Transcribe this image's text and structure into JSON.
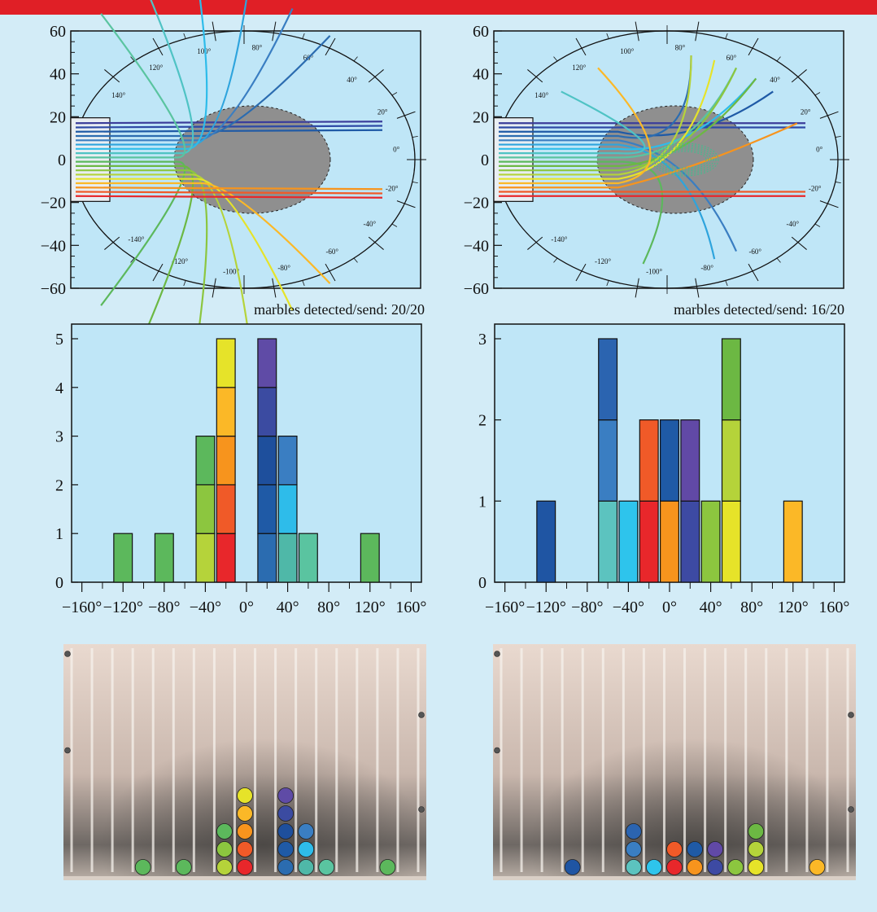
{
  "page": {
    "accent_color": "#e01f26",
    "background_color": "#d3ecf7",
    "plot_bg_color": "#bfe6f7"
  },
  "panels": [
    {
      "caption": "marbles detected/send: 20/20"
    },
    {
      "caption": "marbles detected/send: 16/20"
    }
  ],
  "trajectory_plot": {
    "y_ticks": [
      "60",
      "40",
      "20",
      "0",
      "−20",
      "−40",
      "−60"
    ],
    "angle_labels_upper": [
      "140°",
      "120°",
      "100°",
      "80°",
      "60°",
      "40°",
      "20°",
      "0°"
    ],
    "angle_labels_lower": [
      "-140°",
      "-120°",
      "-100°",
      "-80°",
      "-60°",
      "-40°",
      "-20°"
    ]
  },
  "chart_data": [
    {
      "type": "bar",
      "title": "marbles detected/send: 20/20",
      "xlabel": "",
      "ylabel": "",
      "x_ticks": [
        "−160°",
        "−120°",
        "−80°",
        "−40°",
        "0°",
        "40°",
        "80°",
        "120°",
        "160°"
      ],
      "y_ticks": [
        "0",
        "1",
        "2",
        "3",
        "4",
        "5"
      ],
      "xlim": [
        -170,
        170
      ],
      "ylim": [
        0,
        5
      ],
      "bin_width": 20,
      "bins": [
        {
          "x": -120,
          "count": 1,
          "colors": [
            "#5cb85c"
          ]
        },
        {
          "x": -80,
          "count": 1,
          "colors": [
            "#5cb85c"
          ]
        },
        {
          "x": -40,
          "count": 3,
          "colors": [
            "#b5d33a",
            "#8cc63f",
            "#5cb85c"
          ]
        },
        {
          "x": -20,
          "count": 5,
          "colors": [
            "#e8272b",
            "#f05a28",
            "#f7941d",
            "#fbb827",
            "#e6e329"
          ]
        },
        {
          "x": 20,
          "count": 5,
          "colors": [
            "#2b6cb0",
            "#1f5aa6",
            "#1e4f9c",
            "#3b4ba1",
            "#5f4ba6"
          ]
        },
        {
          "x": 40,
          "count": 3,
          "colors": [
            "#4fb8a8",
            "#2ebcea",
            "#3a7ec2"
          ]
        },
        {
          "x": 60,
          "count": 1,
          "colors": [
            "#5ac4a0"
          ]
        },
        {
          "x": 120,
          "count": 1,
          "colors": [
            "#5cb85c"
          ]
        }
      ]
    },
    {
      "type": "bar",
      "title": "marbles detected/send: 16/20",
      "xlabel": "",
      "ylabel": "",
      "x_ticks": [
        "−160°",
        "−120°",
        "−80°",
        "−40°",
        "0°",
        "40°",
        "80°",
        "120°",
        "160°"
      ],
      "y_ticks": [
        "0",
        "1",
        "2",
        "3"
      ],
      "xlim": [
        -170,
        170
      ],
      "ylim": [
        0,
        3
      ],
      "bin_width": 20,
      "bins": [
        {
          "x": -120,
          "count": 1,
          "colors": [
            "#1f55a3"
          ]
        },
        {
          "x": -60,
          "count": 3,
          "colors": [
            "#5cc3bf",
            "#3a7ec2",
            "#2b64b0"
          ]
        },
        {
          "x": -40,
          "count": 1,
          "colors": [
            "#2ec4ec"
          ]
        },
        {
          "x": -20,
          "count": 2,
          "colors": [
            "#e8272b",
            "#f05a28"
          ]
        },
        {
          "x": 0,
          "count": 2,
          "colors": [
            "#f7941d",
            "#1f5aa6"
          ]
        },
        {
          "x": 20,
          "count": 2,
          "colors": [
            "#3d4aa3",
            "#6149a6"
          ]
        },
        {
          "x": 40,
          "count": 1,
          "colors": [
            "#8cc63f"
          ]
        },
        {
          "x": 60,
          "count": 3,
          "colors": [
            "#e6e329",
            "#b5d33a",
            "#6cb843"
          ]
        },
        {
          "x": 120,
          "count": 1,
          "colors": [
            "#fbb827"
          ]
        }
      ]
    }
  ]
}
